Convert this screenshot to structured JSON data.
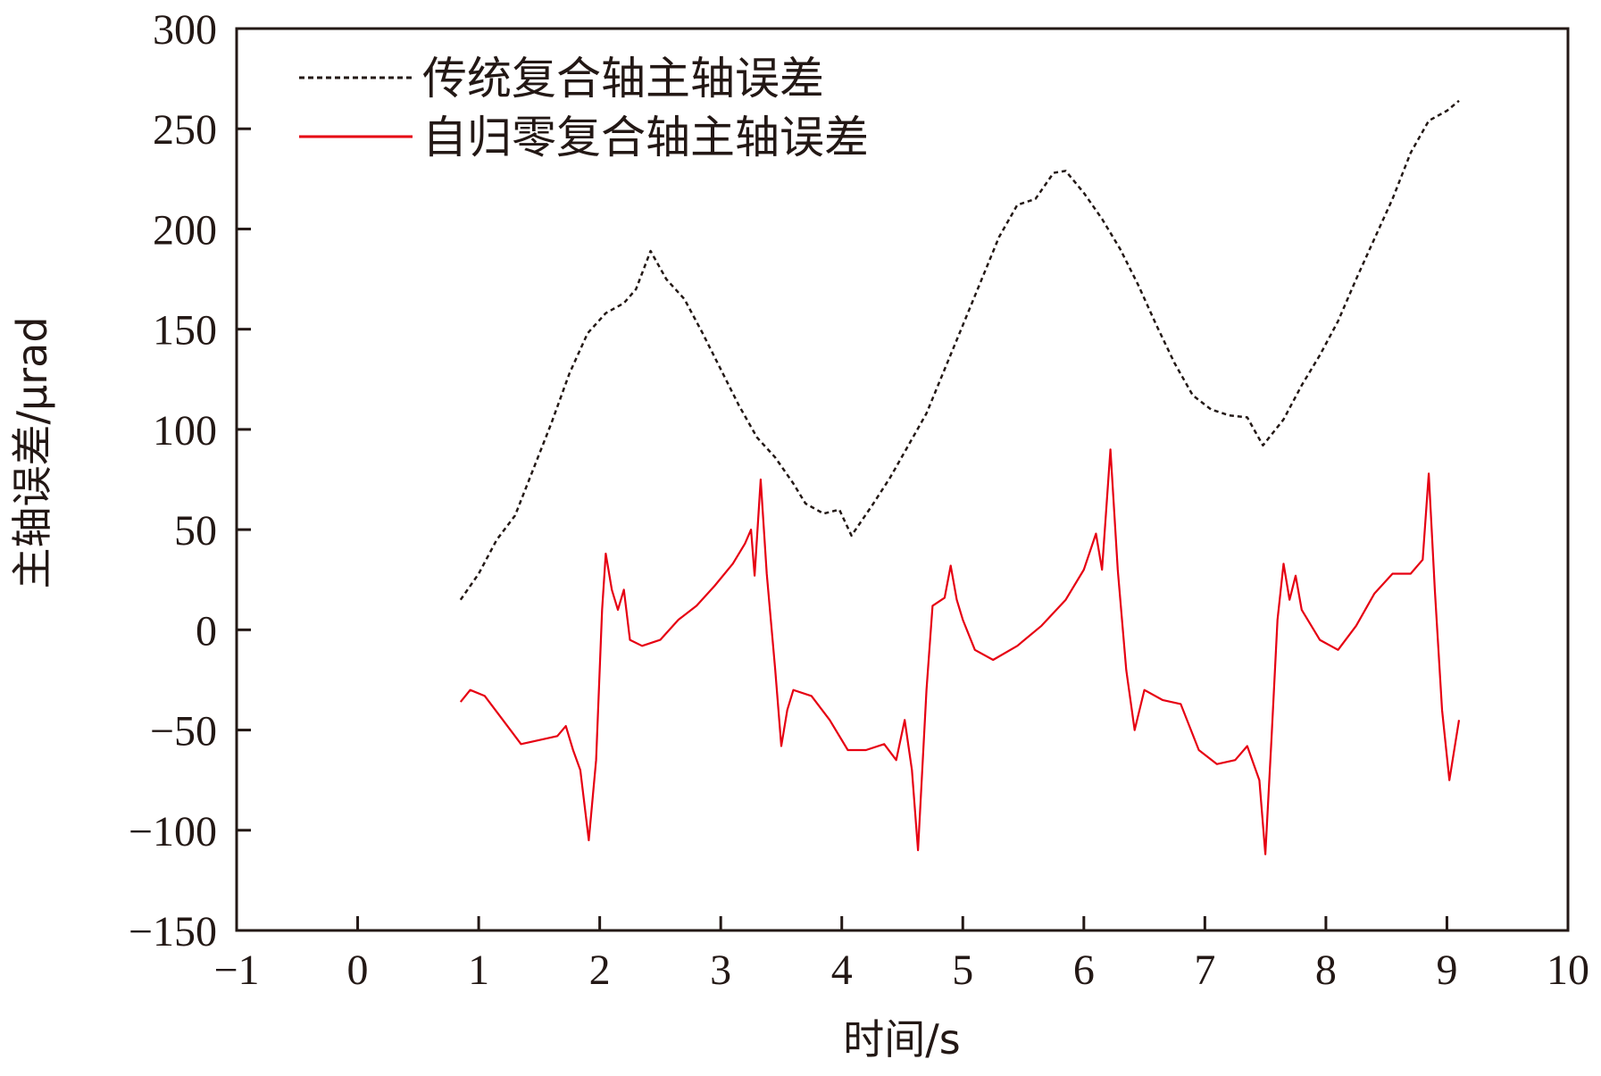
{
  "chart_data": {
    "type": "line",
    "title": "",
    "xlabel": "时间/s",
    "ylabel": "主轴误差/μrad",
    "xlim": [
      -1,
      10
    ],
    "ylim": [
      -150,
      300
    ],
    "x_ticks": [
      "−1",
      "0",
      "1",
      "2",
      "3",
      "4",
      "5",
      "6",
      "7",
      "8",
      "9",
      "10"
    ],
    "y_ticks": [
      "300",
      "250",
      "200",
      "150",
      "100",
      "50",
      "0",
      "−50",
      "−100",
      "−150"
    ],
    "grid": false,
    "legend_position": "top-left",
    "series": [
      {
        "name": "传统复合轴主轴误差",
        "style": "dashed",
        "color": "#231815",
        "points": [
          [
            0.85,
            15
          ],
          [
            1.0,
            28
          ],
          [
            1.15,
            45
          ],
          [
            1.3,
            57
          ],
          [
            1.45,
            80
          ],
          [
            1.6,
            103
          ],
          [
            1.75,
            128
          ],
          [
            1.9,
            148
          ],
          [
            2.05,
            158
          ],
          [
            2.2,
            163
          ],
          [
            2.3,
            170
          ],
          [
            2.42,
            189
          ],
          [
            2.55,
            175
          ],
          [
            2.7,
            165
          ],
          [
            2.85,
            148
          ],
          [
            3.0,
            130
          ],
          [
            3.15,
            112
          ],
          [
            3.3,
            96
          ],
          [
            3.45,
            86
          ],
          [
            3.6,
            73
          ],
          [
            3.7,
            63
          ],
          [
            3.85,
            58
          ],
          [
            3.98,
            60
          ],
          [
            4.08,
            47
          ],
          [
            4.25,
            62
          ],
          [
            4.4,
            76
          ],
          [
            4.55,
            92
          ],
          [
            4.7,
            108
          ],
          [
            4.85,
            130
          ],
          [
            5.0,
            152
          ],
          [
            5.15,
            174
          ],
          [
            5.3,
            196
          ],
          [
            5.45,
            212
          ],
          [
            5.6,
            215
          ],
          [
            5.75,
            228
          ],
          [
            5.85,
            229
          ],
          [
            6.0,
            218
          ],
          [
            6.15,
            205
          ],
          [
            6.3,
            190
          ],
          [
            6.45,
            172
          ],
          [
            6.6,
            152
          ],
          [
            6.75,
            133
          ],
          [
            6.9,
            117
          ],
          [
            7.05,
            110
          ],
          [
            7.2,
            107
          ],
          [
            7.35,
            106
          ],
          [
            7.48,
            92
          ],
          [
            7.65,
            105
          ],
          [
            7.8,
            122
          ],
          [
            7.95,
            137
          ],
          [
            8.1,
            154
          ],
          [
            8.25,
            175
          ],
          [
            8.4,
            195
          ],
          [
            8.55,
            215
          ],
          [
            8.7,
            238
          ],
          [
            8.85,
            254
          ],
          [
            9.0,
            259
          ],
          [
            9.1,
            264
          ]
        ]
      },
      {
        "name": "自归零复合轴主轴误差",
        "style": "solid",
        "color": "#e60012",
        "points": [
          [
            0.85,
            -36
          ],
          [
            0.93,
            -30
          ],
          [
            1.05,
            -33
          ],
          [
            1.2,
            -45
          ],
          [
            1.35,
            -57
          ],
          [
            1.5,
            -55
          ],
          [
            1.65,
            -53
          ],
          [
            1.72,
            -48
          ],
          [
            1.78,
            -60
          ],
          [
            1.84,
            -70
          ],
          [
            1.91,
            -105
          ],
          [
            1.97,
            -65
          ],
          [
            2.02,
            10
          ],
          [
            2.05,
            38
          ],
          [
            2.1,
            20
          ],
          [
            2.15,
            10
          ],
          [
            2.2,
            20
          ],
          [
            2.25,
            -5
          ],
          [
            2.35,
            -8
          ],
          [
            2.5,
            -5
          ],
          [
            2.65,
            5
          ],
          [
            2.8,
            12
          ],
          [
            2.95,
            22
          ],
          [
            3.1,
            33
          ],
          [
            3.2,
            43
          ],
          [
            3.25,
            50
          ],
          [
            3.28,
            27
          ],
          [
            3.33,
            75
          ],
          [
            3.38,
            28
          ],
          [
            3.45,
            -20
          ],
          [
            3.5,
            -58
          ],
          [
            3.55,
            -40
          ],
          [
            3.6,
            -30
          ],
          [
            3.75,
            -33
          ],
          [
            3.9,
            -45
          ],
          [
            4.05,
            -60
          ],
          [
            4.2,
            -60
          ],
          [
            4.35,
            -57
          ],
          [
            4.45,
            -65
          ],
          [
            4.52,
            -45
          ],
          [
            4.58,
            -70
          ],
          [
            4.63,
            -110
          ],
          [
            4.7,
            -30
          ],
          [
            4.75,
            12
          ],
          [
            4.85,
            16
          ],
          [
            4.9,
            32
          ],
          [
            4.95,
            15
          ],
          [
            5.0,
            5
          ],
          [
            5.1,
            -10
          ],
          [
            5.25,
            -15
          ],
          [
            5.45,
            -8
          ],
          [
            5.65,
            2
          ],
          [
            5.85,
            15
          ],
          [
            6.0,
            30
          ],
          [
            6.1,
            48
          ],
          [
            6.15,
            30
          ],
          [
            6.22,
            90
          ],
          [
            6.28,
            30
          ],
          [
            6.35,
            -20
          ],
          [
            6.42,
            -50
          ],
          [
            6.5,
            -30
          ],
          [
            6.65,
            -35
          ],
          [
            6.8,
            -37
          ],
          [
            6.95,
            -60
          ],
          [
            7.1,
            -67
          ],
          [
            7.25,
            -65
          ],
          [
            7.35,
            -58
          ],
          [
            7.45,
            -75
          ],
          [
            7.5,
            -112
          ],
          [
            7.55,
            -55
          ],
          [
            7.6,
            5
          ],
          [
            7.65,
            33
          ],
          [
            7.7,
            15
          ],
          [
            7.75,
            27
          ],
          [
            7.8,
            10
          ],
          [
            7.95,
            -5
          ],
          [
            8.1,
            -10
          ],
          [
            8.25,
            2
          ],
          [
            8.4,
            18
          ],
          [
            8.55,
            28
          ],
          [
            8.7,
            28
          ],
          [
            8.8,
            35
          ],
          [
            8.85,
            78
          ],
          [
            8.9,
            20
          ],
          [
            8.96,
            -40
          ],
          [
            9.02,
            -75
          ],
          [
            9.1,
            -45
          ]
        ]
      }
    ]
  }
}
